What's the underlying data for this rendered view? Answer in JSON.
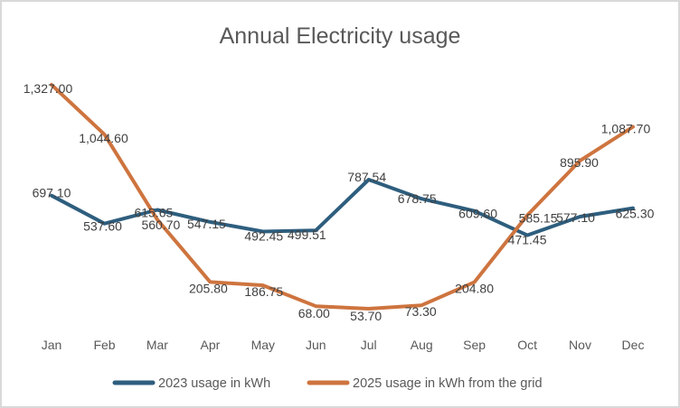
{
  "chart_data": {
    "type": "line",
    "title": "Annual Electricity usage",
    "xlabel": "",
    "ylabel": "",
    "ylim": [
      0,
      1400
    ],
    "grid": false,
    "legend_position": "bottom",
    "categories": [
      "Jan",
      "Feb",
      "Mar",
      "Apr",
      "May",
      "Jun",
      "Jul",
      "Aug",
      "Sep",
      "Oct",
      "Nov",
      "Dec"
    ],
    "series": [
      {
        "name": "2023 usage in kWh",
        "color": "#2E5E7E",
        "values": [
          697.1,
          537.6,
          615.65,
          547.15,
          492.45,
          499.51,
          787.54,
          678.75,
          609.6,
          471.45,
          577.1,
          625.3
        ],
        "labels": [
          "697.10",
          "537.60",
          "615.65",
          "547.15",
          "492.45",
          "499.51",
          "787.54",
          "678.75",
          "609.60",
          "471.45",
          "577.10",
          "625.30"
        ],
        "label_offsets": [
          [
            0,
            -3
          ],
          [
            -2,
            3
          ],
          [
            -4,
            3
          ],
          [
            -4,
            2
          ],
          [
            1,
            5
          ],
          [
            -10,
            5
          ],
          [
            -2,
            -3
          ],
          [
            -5,
            0
          ],
          [
            4,
            3
          ],
          [
            0,
            5
          ],
          [
            -5,
            1
          ],
          [
            2,
            6
          ]
        ]
      },
      {
        "name": "2025 usage in kWh from the grid",
        "color": "#CE743F",
        "values": [
          1327.0,
          1044.6,
          560.7,
          205.8,
          186.75,
          68.0,
          53.7,
          73.3,
          204.8,
          585.15,
          895.9,
          1087.7
        ],
        "labels": [
          "1,327.00",
          "1,044.60",
          "560.70",
          "205.80",
          "186.75",
          "68.00",
          "53.70",
          "73.30",
          "204.80",
          "585.15",
          "895.90",
          "1,087.70"
        ],
        "label_offsets": [
          [
            -4,
            4
          ],
          [
            -1,
            4
          ],
          [
            4,
            6
          ],
          [
            -2,
            7
          ],
          [
            1,
            7
          ],
          [
            -2,
            8
          ],
          [
            -3,
            8
          ],
          [
            -1,
            7
          ],
          [
            0,
            7
          ],
          [
            12,
            3
          ],
          [
            -1,
            2
          ],
          [
            -8,
            2
          ]
        ]
      }
    ],
    "layout": {
      "x_start": 55,
      "x_step": 58.4545,
      "y_zero": 350.5,
      "y_scale": 0.19487,
      "line_width": 4,
      "month_baseline_y": 385,
      "legend_y": 422,
      "legend_item_x": [
        125,
        340
      ],
      "legend_swatch_len": 42
    }
  },
  "legend": {
    "items": [
      {
        "label": "2023 usage in kWh",
        "color": "#2E5E7E"
      },
      {
        "label": "2025 usage in kWh from the grid",
        "color": "#CE743F"
      }
    ]
  },
  "colors": {
    "series_2023": "#2E5E7E",
    "series_2025": "#CE743F",
    "title_text": "#595959",
    "axis_text": "#595959",
    "label_text": "#404040",
    "background": "#FFFFFF",
    "border": "#D9D9D9"
  }
}
